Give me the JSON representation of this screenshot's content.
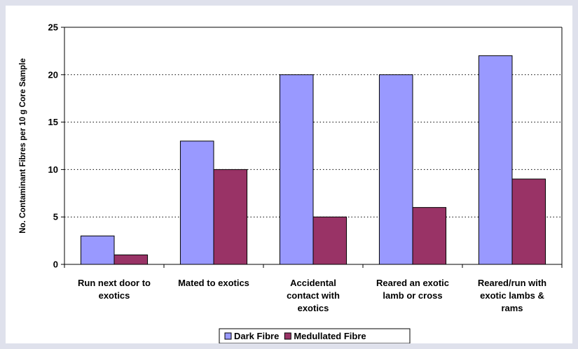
{
  "chart_data": {
    "type": "bar",
    "title": "",
    "xlabel": "",
    "ylabel": "No. Contaminant Fibres per 10 g Core Sample",
    "ylim": [
      0,
      25
    ],
    "yticks": [
      0,
      5,
      10,
      15,
      20,
      25
    ],
    "grid": true,
    "legend_position": "bottom",
    "categories": [
      [
        "Run next door to",
        "exotics"
      ],
      [
        "Mated to exotics"
      ],
      [
        "Accidental",
        "contact with",
        "exotics"
      ],
      [
        "Reared an exotic",
        "lamb or cross"
      ],
      [
        "Reared/run with",
        "exotic lambs &",
        "rams"
      ]
    ],
    "series": [
      {
        "name": "Dark Fibre",
        "color": "#9999ff",
        "values": [
          3,
          13,
          20,
          20,
          22
        ]
      },
      {
        "name": "Medullated Fibre",
        "color": "#993366",
        "values": [
          1,
          10,
          5,
          6,
          9
        ]
      }
    ]
  }
}
